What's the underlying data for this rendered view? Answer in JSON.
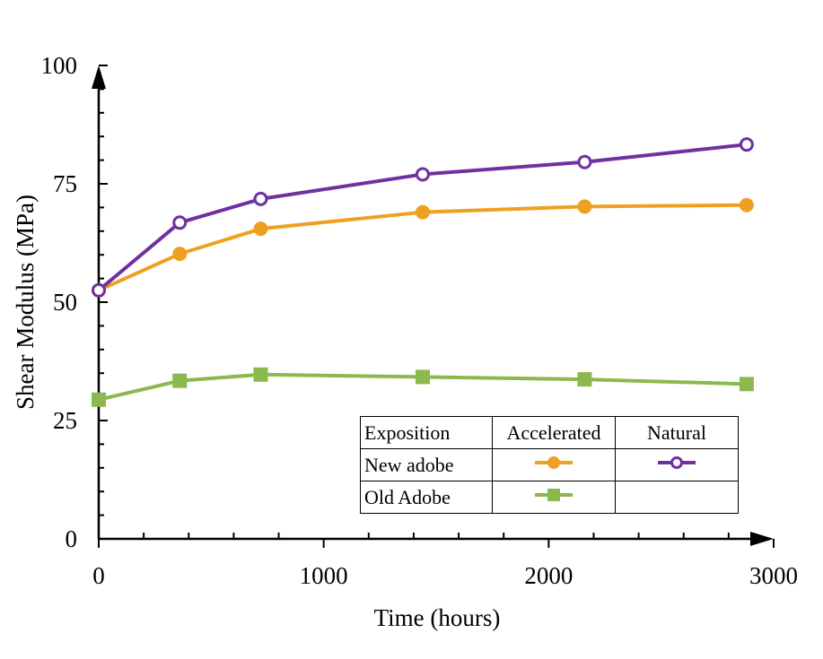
{
  "chart_data": {
    "type": "line",
    "xlabel": "Time (hours)",
    "ylabel": "Shear Modulus (MPa)",
    "xlim": [
      0,
      3000
    ],
    "ylim": [
      0,
      100
    ],
    "x_ticks": [
      "0",
      "1000",
      "2000",
      "3000"
    ],
    "y_ticks": [
      "0",
      "25",
      "50",
      "75",
      "100"
    ],
    "grid": false,
    "legend_placement": "bottom-right",
    "x": [
      0,
      360,
      720,
      1440,
      2160,
      2880
    ],
    "series": [
      {
        "key": "new_accelerated",
        "values": [
          52.5,
          60.2,
          65.5,
          69.0,
          70.2,
          70.5
        ],
        "color": "#F0A020",
        "marker": "filled-circle"
      },
      {
        "key": "new_natural",
        "values": [
          52.5,
          66.8,
          71.8,
          77.0,
          79.6,
          83.3
        ],
        "color": "#7030A0",
        "marker": "open-circle"
      },
      {
        "key": "old_accelerated",
        "values": [
          29.4,
          33.4,
          34.7,
          34.2,
          33.7,
          32.7
        ],
        "color": "#8DB84E",
        "marker": "filled-square"
      }
    ],
    "legend": {
      "header": [
        "Exposition",
        "Accelerated",
        "Natural"
      ],
      "rows": [
        {
          "label": "New adobe",
          "accelerated": "new_accelerated",
          "natural": "new_natural"
        },
        {
          "label": "Old Adobe",
          "accelerated": "old_accelerated",
          "natural": ""
        }
      ]
    }
  }
}
